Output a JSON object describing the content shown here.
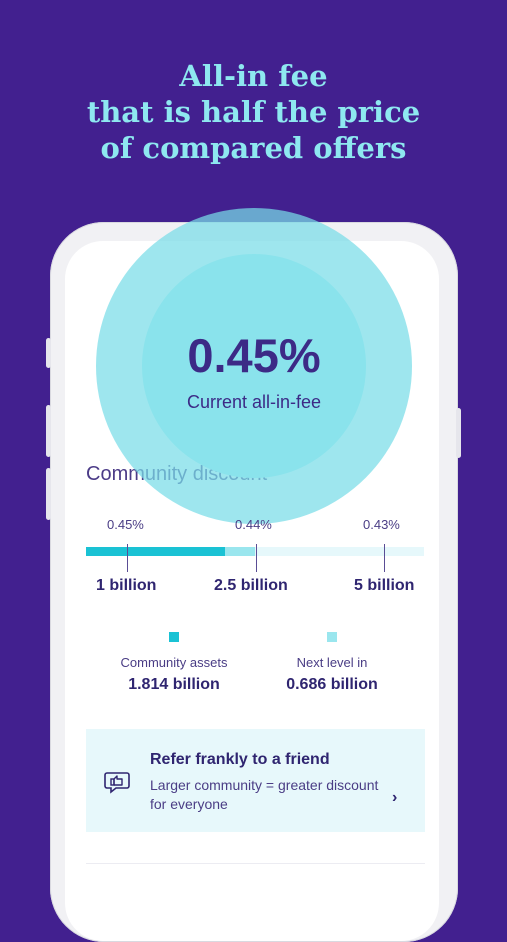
{
  "headline": {
    "line1": "All-in fee",
    "line2": "that is half the price",
    "line3": "of compared offers"
  },
  "fee": {
    "value": "0.45%",
    "label": "Current all-in-fee"
  },
  "community": {
    "title": "Community discount",
    "progress_fraction": 0.41,
    "next_level_fraction": 0.5,
    "levels": [
      {
        "percent": "0.45%",
        "threshold": "1 billion"
      },
      {
        "percent": "0.44%",
        "threshold": "2.5 billion"
      },
      {
        "percent": "0.43%",
        "threshold": "5 billion"
      }
    ],
    "legend": {
      "assets_label": "Community assets",
      "assets_value": "1.814 billion",
      "next_label": "Next level in",
      "next_value": "0.686 billion"
    }
  },
  "refer": {
    "title": "Refer frankly to a friend",
    "description": "Larger community = greater discount for everyone",
    "icon": "thumbs-up-speech-bubble-icon",
    "chevron": "›"
  },
  "colors": {
    "background": "#42208f",
    "accent": "#1ac2d4",
    "accent_light": "#9ae6ee",
    "headline": "#8ee8f0"
  }
}
